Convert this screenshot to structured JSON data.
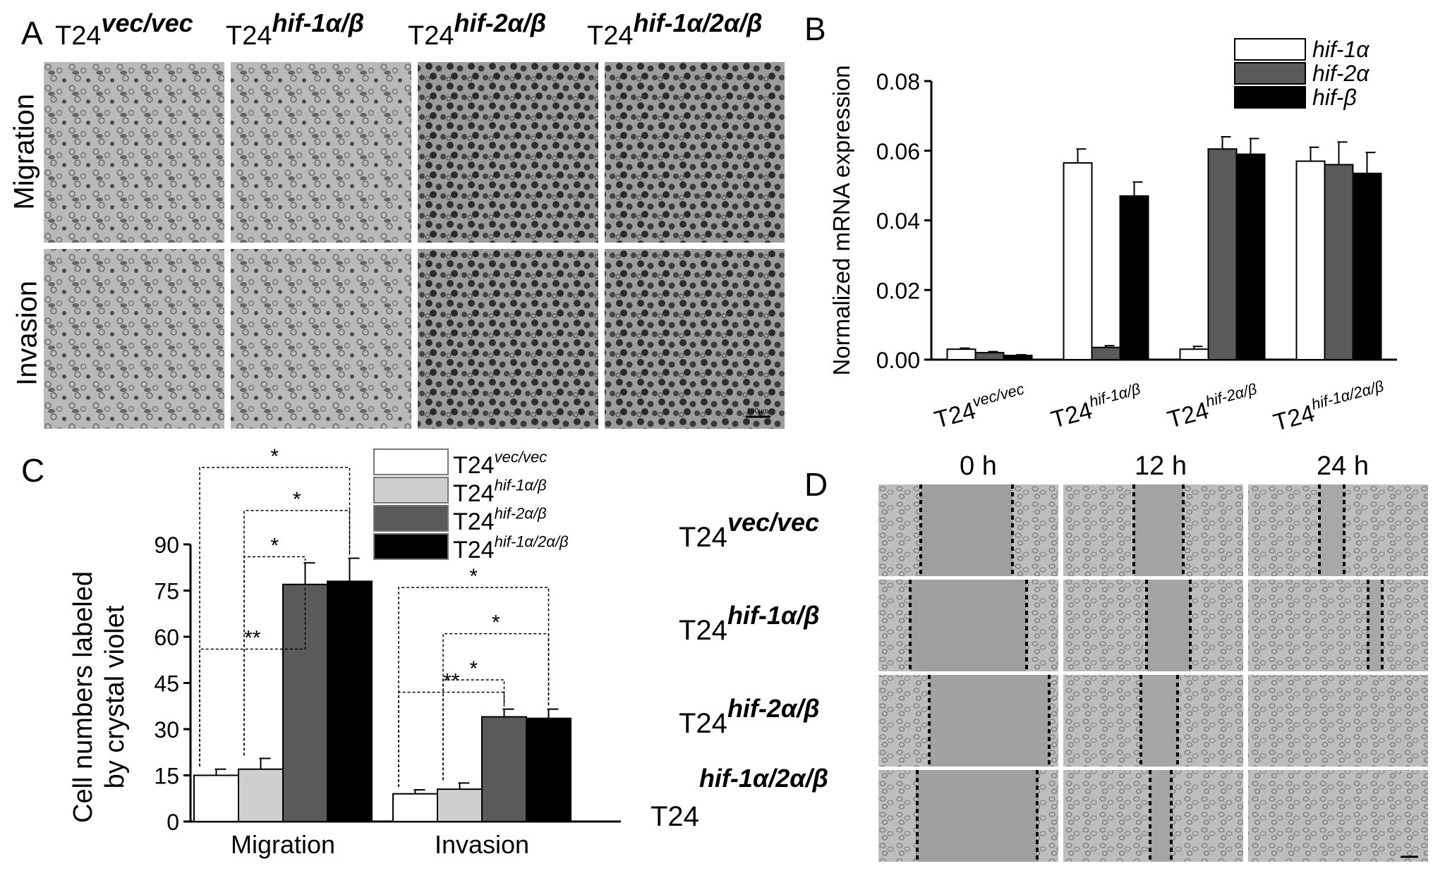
{
  "panels": {
    "a": {
      "letter": "A",
      "columns": [
        {
          "base": "T24",
          "sup": "vec/vec"
        },
        {
          "base": "T24",
          "sup": "hif-1α/β"
        },
        {
          "base": "T24",
          "sup": "hif-2α/β"
        },
        {
          "base": "T24",
          "sup": "hif-1α/2α/β"
        }
      ],
      "rows": [
        "Migration",
        "Invasion"
      ],
      "scale_bar": "100μm"
    },
    "b": {
      "letter": "B"
    },
    "c": {
      "letter": "C"
    },
    "d": {
      "letter": "D",
      "times": [
        "0 h",
        "12 h",
        "24 h"
      ],
      "rows": [
        {
          "base": "T24",
          "sup": "vec/vec"
        },
        {
          "base": "T24",
          "sup": "hif-1α/β"
        },
        {
          "base": "T24",
          "sup": "hif-2α/β"
        },
        {
          "base": "T24",
          "sup": "hif-1α/2α/β"
        }
      ]
    }
  },
  "colors": {
    "white": "#ffffff",
    "lightgray": "#cfcfcf",
    "darkgray": "#5a5a5a",
    "black": "#000000"
  },
  "chart_data": [
    {
      "type": "bar",
      "panel": "B",
      "ylabel": "Normalized mRNA expression",
      "ylim": [
        0,
        0.08
      ],
      "yticks": [
        "0.00",
        "0.02",
        "0.04",
        "0.06",
        "0.08"
      ],
      "categories": [
        {
          "base": "T24",
          "sup": "vec/vec"
        },
        {
          "base": "T24",
          "sup": "hif-1α/β"
        },
        {
          "base": "T24",
          "sup": "hif-2α/β"
        },
        {
          "base": "T24",
          "sup": "hif-1α/2α/β"
        }
      ],
      "series": [
        {
          "name": "hif-1α",
          "color": "#ffffff",
          "values": [
            0.003,
            0.0565,
            0.003,
            0.057
          ],
          "errors": [
            0.0003,
            0.004,
            0.0008,
            0.004
          ]
        },
        {
          "name": "hif-2α",
          "color": "#5a5a5a",
          "values": [
            0.002,
            0.0035,
            0.0605,
            0.056
          ],
          "errors": [
            0.0003,
            0.0005,
            0.0035,
            0.0065
          ]
        },
        {
          "name": "hif-β",
          "color": "#000000",
          "values": [
            0.0012,
            0.047,
            0.059,
            0.0535
          ],
          "errors": [
            0.0002,
            0.004,
            0.0045,
            0.006
          ]
        }
      ],
      "legend": "top-right"
    },
    {
      "type": "bar",
      "panel": "C",
      "ylabel_lines": [
        "Cell numbers labeled",
        "by crystal violet"
      ],
      "ylim": [
        0,
        90
      ],
      "yticks": [
        "0",
        "15",
        "30",
        "45",
        "60",
        "75",
        "90"
      ],
      "categories": [
        "Migration",
        "Invasion"
      ],
      "series": [
        {
          "name": {
            "base": "T24",
            "sup": "vec/vec"
          },
          "color": "#ffffff",
          "values": [
            15,
            9
          ],
          "errors": [
            2,
            1.3
          ]
        },
        {
          "name": {
            "base": "T24",
            "sup": "hif-1α/β"
          },
          "color": "#cfcfcf",
          "values": [
            17,
            10.5
          ],
          "errors": [
            3.5,
            2
          ]
        },
        {
          "name": {
            "base": "T24",
            "sup": "hif-2α/β"
          },
          "color": "#5a5a5a",
          "values": [
            77,
            34
          ],
          "errors": [
            7,
            2.5
          ]
        },
        {
          "name": {
            "base": "T24",
            "sup": "hif-1α/2α/β"
          },
          "color": "#000000",
          "values": [
            78,
            33.5
          ],
          "errors": [
            7.5,
            3
          ]
        }
      ],
      "significance": [
        {
          "group": 0,
          "from": 0,
          "to": 2,
          "level": 56,
          "label": "**"
        },
        {
          "group": 0,
          "from": 1,
          "to": 2,
          "level": 86,
          "label": "*"
        },
        {
          "group": 0,
          "from": 1,
          "to": 3,
          "level": 101,
          "label": "*"
        },
        {
          "group": 0,
          "from": 0,
          "to": 3,
          "level": 115,
          "label": "*"
        },
        {
          "group": 1,
          "from": 0,
          "to": 2,
          "level": 42,
          "label": "**"
        },
        {
          "group": 1,
          "from": 1,
          "to": 2,
          "level": 46,
          "label": "*"
        },
        {
          "group": 1,
          "from": 1,
          "to": 3,
          "level": 61,
          "label": "*"
        },
        {
          "group": 1,
          "from": 0,
          "to": 3,
          "level": 76,
          "label": "*"
        }
      ],
      "legend": "top-right"
    }
  ]
}
